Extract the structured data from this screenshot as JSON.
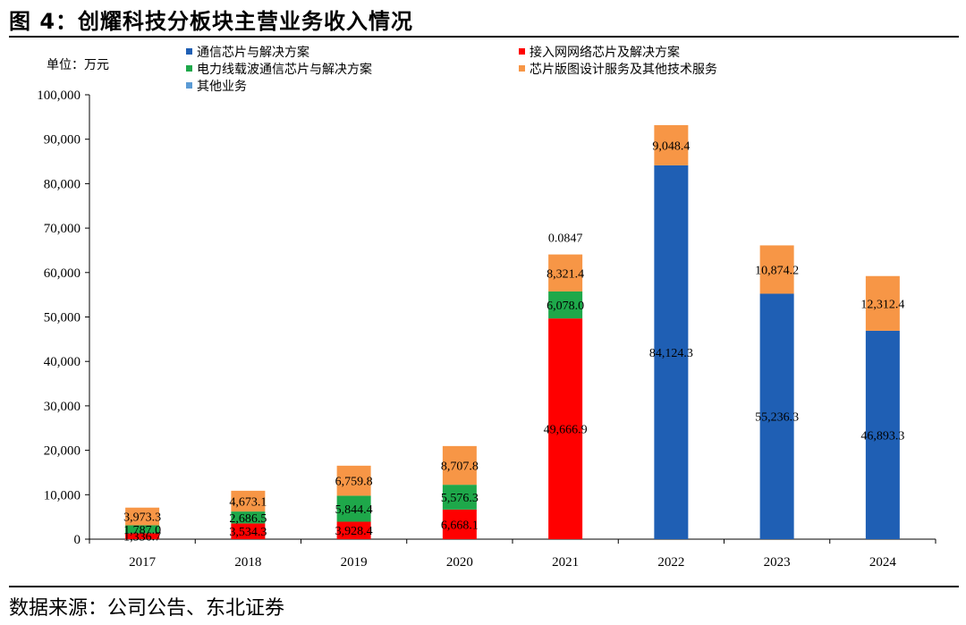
{
  "figure_title": "图 4：创耀科技分板块主营业务收入情况",
  "source_note": "数据来源：公司公告、东北证券",
  "chart_data": {
    "type": "bar",
    "stacked": true,
    "unit_label": "单位：万元",
    "categories": [
      "2017",
      "2018",
      "2019",
      "2020",
      "2021",
      "2022",
      "2023",
      "2024"
    ],
    "ylim": [
      0,
      100000
    ],
    "yticks": [
      0,
      10000,
      20000,
      30000,
      40000,
      50000,
      60000,
      70000,
      80000,
      90000,
      100000
    ],
    "ytick_labels": [
      "0",
      "10,000",
      "20,000",
      "30,000",
      "40,000",
      "50,000",
      "60,000",
      "70,000",
      "80,000",
      "90,000",
      "100,000"
    ],
    "legend_position": "top",
    "series": [
      {
        "name": "通信芯片与解决方案",
        "color": "#1f5fb4",
        "values": [
          null,
          null,
          null,
          null,
          null,
          84124.3,
          55236.3,
          46893.3
        ],
        "labels": [
          "",
          "",
          "",
          "",
          "",
          "84,124.3",
          "55,236.3",
          "46,893.3"
        ]
      },
      {
        "name": "接入网网络芯片及解决方案",
        "color": "#ff0000",
        "values": [
          1336.7,
          3534.3,
          3928.4,
          6668.1,
          49666.9,
          null,
          null,
          null
        ],
        "labels": [
          "1,336.7",
          "3,534.3",
          "3,928.4",
          "6,668.1",
          "49,666.9",
          "",
          "",
          ""
        ]
      },
      {
        "name": "电力线载波通信芯片与解决方案",
        "color": "#1ea84a",
        "values": [
          1787.0,
          2686.5,
          5844.4,
          5576.3,
          6078.0,
          null,
          null,
          null
        ],
        "labels": [
          "1,787.0",
          "2,686.5",
          "5,844.4",
          "5,576.3",
          "6,078.0",
          "",
          "",
          ""
        ]
      },
      {
        "name": "芯片版图设计服务及其他技术服务",
        "color": "#f79646",
        "values": [
          3973.3,
          4673.1,
          6759.8,
          8707.8,
          8321.4,
          9048.4,
          10874.2,
          12312.4
        ],
        "labels": [
          "3,973.3",
          "4,673.1",
          "6,759.8",
          "8,707.8",
          "8,321.4",
          "9,048.4",
          "10,874.2",
          "12,312.4"
        ]
      },
      {
        "name": "其他业务",
        "color": "#5b9bd5",
        "values": [
          null,
          null,
          null,
          null,
          0.0847,
          null,
          null,
          null
        ],
        "labels": [
          "",
          "",
          "",
          "",
          "0.0847",
          "",
          "",
          ""
        ]
      }
    ]
  }
}
